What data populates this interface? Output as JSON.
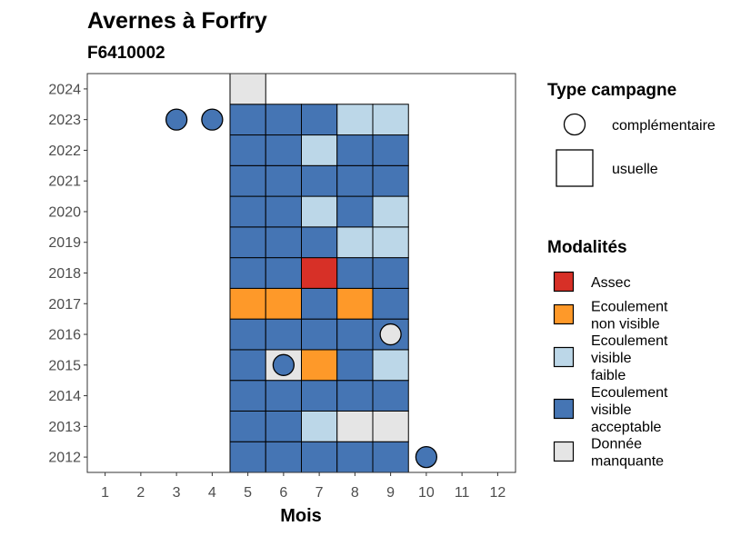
{
  "chart_data": {
    "type": "heatmap",
    "title": "Avernes à Forfry",
    "subtitle": "F6410002",
    "xlabel": "Mois",
    "ylabel": "",
    "x_ticks": [
      "1",
      "2",
      "3",
      "4",
      "5",
      "6",
      "7",
      "8",
      "9",
      "10",
      "11",
      "12"
    ],
    "y_ticks": [
      "2012",
      "2013",
      "2014",
      "2015",
      "2016",
      "2017",
      "2018",
      "2019",
      "2020",
      "2021",
      "2022",
      "2023",
      "2024"
    ],
    "xlim": [
      0.5,
      12.5
    ],
    "ylim": [
      2011.5,
      2024.5
    ],
    "grid": false,
    "legend_placement": "right",
    "colors": {
      "Assec": "#d73027",
      "Ecoulement non visible": "#fe9929",
      "Ecoulement visible faible": "#bcd7e8",
      "Ecoulement visible acceptable": "#4575b4",
      "Donnée manquante": "#e5e5e5"
    },
    "legend_campagne": {
      "title": "Type campagne",
      "items": [
        {
          "shape": "circle",
          "label": "complémentaire"
        },
        {
          "shape": "square",
          "label": "usuelle"
        }
      ]
    },
    "legend_modalites": {
      "title": "Modalités",
      "items": [
        {
          "key": "Assec",
          "lines": [
            "Assec"
          ]
        },
        {
          "key": "Ecoulement non visible",
          "lines": [
            "Ecoulement",
            "non visible"
          ]
        },
        {
          "key": "Ecoulement visible faible",
          "lines": [
            "Ecoulement",
            "visible",
            "faible"
          ]
        },
        {
          "key": "Ecoulement visible acceptable",
          "lines": [
            "Ecoulement",
            "visible",
            "acceptable"
          ]
        },
        {
          "key": "Donnée manquante",
          "lines": [
            "Donnée",
            "manquante"
          ]
        }
      ]
    },
    "usuelle": {
      "2012": [
        [
          "5",
          "Ecoulement visible acceptable"
        ],
        [
          "6",
          "Ecoulement visible acceptable"
        ],
        [
          "7",
          "Ecoulement visible acceptable"
        ],
        [
          "8",
          "Ecoulement visible acceptable"
        ],
        [
          "9",
          "Ecoulement visible acceptable"
        ]
      ],
      "2013": [
        [
          "5",
          "Ecoulement visible acceptable"
        ],
        [
          "6",
          "Ecoulement visible acceptable"
        ],
        [
          "7",
          "Ecoulement visible faible"
        ],
        [
          "8",
          "Donnée manquante"
        ],
        [
          "9",
          "Donnée manquante"
        ]
      ],
      "2014": [
        [
          "5",
          "Ecoulement visible acceptable"
        ],
        [
          "6",
          "Ecoulement visible acceptable"
        ],
        [
          "7",
          "Ecoulement visible acceptable"
        ],
        [
          "8",
          "Ecoulement visible acceptable"
        ],
        [
          "9",
          "Ecoulement visible acceptable"
        ]
      ],
      "2015": [
        [
          "5",
          "Ecoulement visible acceptable"
        ],
        [
          "6",
          "Donnée manquante"
        ],
        [
          "7",
          "Ecoulement non visible"
        ],
        [
          "8",
          "Ecoulement visible acceptable"
        ],
        [
          "9",
          "Ecoulement visible faible"
        ]
      ],
      "2016": [
        [
          "5",
          "Ecoulement visible acceptable"
        ],
        [
          "6",
          "Ecoulement visible acceptable"
        ],
        [
          "7",
          "Ecoulement visible acceptable"
        ],
        [
          "8",
          "Ecoulement visible acceptable"
        ],
        [
          "9",
          "Ecoulement visible acceptable"
        ]
      ],
      "2017": [
        [
          "5",
          "Ecoulement non visible"
        ],
        [
          "6",
          "Ecoulement non visible"
        ],
        [
          "7",
          "Ecoulement visible acceptable"
        ],
        [
          "8",
          "Ecoulement non visible"
        ],
        [
          "9",
          "Ecoulement visible acceptable"
        ]
      ],
      "2018": [
        [
          "5",
          "Ecoulement visible acceptable"
        ],
        [
          "6",
          "Ecoulement visible acceptable"
        ],
        [
          "7",
          "Assec"
        ],
        [
          "8",
          "Ecoulement visible acceptable"
        ],
        [
          "9",
          "Ecoulement visible acceptable"
        ]
      ],
      "2019": [
        [
          "5",
          "Ecoulement visible acceptable"
        ],
        [
          "6",
          "Ecoulement visible acceptable"
        ],
        [
          "7",
          "Ecoulement visible acceptable"
        ],
        [
          "8",
          "Ecoulement visible faible"
        ],
        [
          "9",
          "Ecoulement visible faible"
        ]
      ],
      "2020": [
        [
          "5",
          "Ecoulement visible acceptable"
        ],
        [
          "6",
          "Ecoulement visible acceptable"
        ],
        [
          "7",
          "Ecoulement visible faible"
        ],
        [
          "8",
          "Ecoulement visible acceptable"
        ],
        [
          "9",
          "Ecoulement visible faible"
        ]
      ],
      "2021": [
        [
          "5",
          "Ecoulement visible acceptable"
        ],
        [
          "6",
          "Ecoulement visible acceptable"
        ],
        [
          "7",
          "Ecoulement visible acceptable"
        ],
        [
          "8",
          "Ecoulement visible acceptable"
        ],
        [
          "9",
          "Ecoulement visible acceptable"
        ]
      ],
      "2022": [
        [
          "5",
          "Ecoulement visible acceptable"
        ],
        [
          "6",
          "Ecoulement visible acceptable"
        ],
        [
          "7",
          "Ecoulement visible faible"
        ],
        [
          "8",
          "Ecoulement visible acceptable"
        ],
        [
          "9",
          "Ecoulement visible acceptable"
        ]
      ],
      "2023": [
        [
          "5",
          "Ecoulement visible acceptable"
        ],
        [
          "6",
          "Ecoulement visible acceptable"
        ],
        [
          "7",
          "Ecoulement visible acceptable"
        ],
        [
          "8",
          "Ecoulement visible faible"
        ],
        [
          "9",
          "Ecoulement visible faible"
        ]
      ],
      "2024": [
        [
          "5",
          "Donnée manquante"
        ]
      ]
    },
    "complementaire": [
      {
        "year": 2012,
        "month": 10,
        "modalite": "Ecoulement visible acceptable"
      },
      {
        "year": 2015,
        "month": 6,
        "modalite": "Ecoulement visible acceptable"
      },
      {
        "year": 2016,
        "month": 9,
        "modalite": "Donnée manquante"
      },
      {
        "year": 2023,
        "month": 3,
        "modalite": "Ecoulement visible acceptable"
      },
      {
        "year": 2023,
        "month": 4,
        "modalite": "Ecoulement visible acceptable"
      }
    ]
  }
}
